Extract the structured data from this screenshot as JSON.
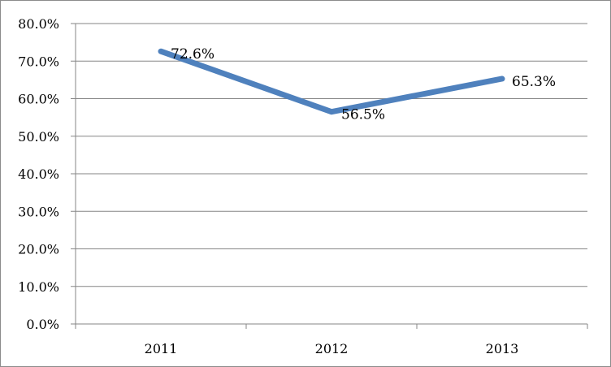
{
  "chart_data": {
    "type": "line",
    "categories": [
      "2011",
      "2012",
      "2013"
    ],
    "series": [
      {
        "values": [
          72.6,
          56.5,
          65.3
        ],
        "color": "#4f81bd"
      }
    ],
    "data_labels": [
      "72.6%",
      "56.5%",
      "65.3%"
    ],
    "ylim": [
      0,
      80
    ],
    "y_ticks": [
      0,
      10,
      20,
      30,
      40,
      50,
      60,
      70,
      80
    ],
    "y_tick_labels": [
      "0.0%",
      "10.0%",
      "20.0%",
      "30.0%",
      "40.0%",
      "50.0%",
      "60.0%",
      "70.0%",
      "80.0%"
    ],
    "grid": true,
    "legend": "none"
  }
}
